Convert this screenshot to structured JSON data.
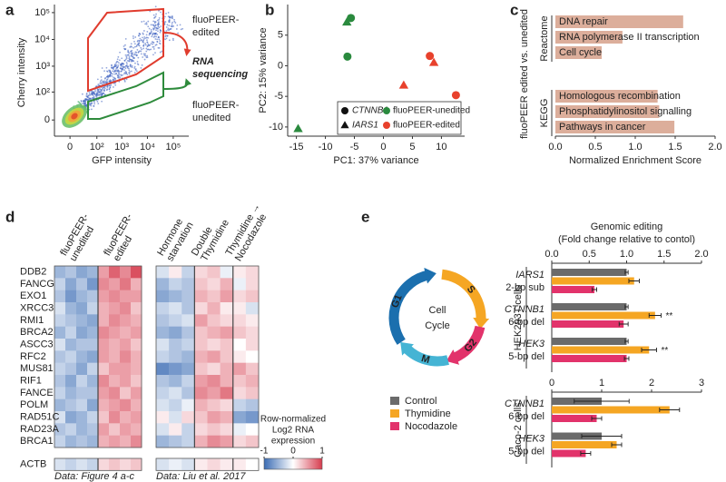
{
  "panel_labels": [
    "a",
    "b",
    "c",
    "d",
    "e"
  ],
  "flow_plot": {
    "xlabel": "GFP intensity",
    "ylabel": "Cherry intensity",
    "xscale": "symlog",
    "yscale": "symlog",
    "xlim": [
      -30,
      400000
    ],
    "ylim": [
      -30,
      200000
    ],
    "xticks": [
      0,
      {
        "value": 100,
        "label": "10²"
      },
      {
        "value": 1000,
        "label": "10³"
      },
      {
        "value": 10000,
        "label": "10⁴"
      },
      {
        "value": 100000,
        "label": "10⁵"
      }
    ],
    "yticks": [
      0,
      {
        "value": 100,
        "label": "10²"
      },
      {
        "value": 1000,
        "label": "10³"
      },
      {
        "value": 10000,
        "label": "10⁴"
      },
      {
        "value": 100000,
        "label": "10⁵"
      }
    ],
    "gates": [
      {
        "lines": [
          "fluoPEER-",
          "edited"
        ],
        "color": "#e03c2e"
      },
      {
        "lines": [
          "fluoPEER-",
          "unedited"
        ],
        "color": "#2e8b3c"
      }
    ],
    "annotation": [
      "RNA",
      "sequencing"
    ]
  },
  "cell_cycle": {
    "title": [
      "Cell",
      "Cycle"
    ],
    "phases": [
      "G1",
      "S",
      "G2",
      "M"
    ]
  },
  "chart_data": [
    {
      "type": "scatter",
      "xlabel": "PC1: 37% variance",
      "ylabel": "PC2: 15% variance",
      "xlim": [
        -16.5,
        14
      ],
      "ylim": [
        -11.5,
        10
      ],
      "xticks": [
        -15,
        -10,
        -5,
        0,
        5,
        10
      ],
      "yticks": [
        -10,
        -5,
        0,
        5
      ],
      "marker_legend": [
        {
          "name": "CTNNB1",
          "marker": "circle"
        },
        {
          "name": "IARS1",
          "marker": "triangle"
        }
      ],
      "series": [
        {
          "name": "fluoPEER-unedited",
          "color": "#2a8a3e",
          "x": [
            -5.6,
            -6.3,
            -6.2,
            -14.7
          ],
          "y": [
            7.8,
            7.1,
            1.5,
            -10.3
          ],
          "markers": [
            "circle",
            "triangle",
            "circle",
            "triangle"
          ]
        },
        {
          "name": "fluoPEER-edited",
          "color": "#e8412c",
          "x": [
            8,
            8.7,
            3.5,
            12.5
          ],
          "y": [
            1.6,
            0.5,
            -3.2,
            -4.8
          ],
          "markers": [
            "circle",
            "triangle",
            "triangle",
            "circle"
          ]
        }
      ]
    },
    {
      "type": "hbar",
      "xlabel": "Normalized Enrichment Score",
      "ylabel": "fluoPEER edited vs. unedited",
      "color": "#dcae9b",
      "xlim": [
        0,
        2
      ],
      "xticks": [
        {
          "value": 0,
          "label": "0.0"
        },
        0.5,
        {
          "value": 1,
          "label": "1.0"
        },
        1.5,
        {
          "value": 2,
          "label": "2.0"
        }
      ],
      "groups": [
        {
          "name": "Reactome",
          "categories": [
            "DNA repair",
            "RNA polymerase II transcription",
            "Cell cycle"
          ],
          "values": [
            1.6,
            0.84,
            0.58
          ]
        },
        {
          "name": "KEGG",
          "categories": [
            "Homologous recombination",
            "Phosphatidylinositol signalling",
            "Pathways in cancer"
          ],
          "values": [
            1.28,
            1.3,
            1.49
          ]
        }
      ]
    },
    {
      "type": "heatmap",
      "rows": [
        "DDB2",
        "FANCG",
        "EXO1",
        "XRCC3",
        "RMI1",
        "BRCA2",
        "ASCC3",
        "RFC2",
        "MUS81",
        "RIF1",
        "FANCE",
        "POLM",
        "RAD51C",
        "RAD23A",
        "BRCA1"
      ],
      "column_headers": [
        [
          "fluoPEER-",
          "unedited"
        ],
        [
          "fluoPEER-",
          "edited"
        ]
      ],
      "zlim": [
        -1,
        1
      ],
      "colors": [
        "#3b6cb4",
        "#ffffff",
        "#d63c4e"
      ],
      "values": [
        [
          -0.5,
          -0.4,
          -0.6,
          -0.5,
          0.5,
          0.8,
          0.6,
          0.9
        ],
        [
          -0.3,
          -0.6,
          -0.4,
          -0.7,
          0.6,
          0.5,
          0.7,
          0.4
        ],
        [
          -0.4,
          -0.7,
          -0.5,
          -0.4,
          0.5,
          0.6,
          0.5,
          0.5
        ],
        [
          -0.2,
          -0.5,
          -0.6,
          -0.3,
          0.4,
          0.5,
          0.6,
          0.3
        ],
        [
          -0.3,
          -0.4,
          -0.5,
          -0.6,
          0.4,
          0.6,
          0.5,
          0.4
        ],
        [
          -0.5,
          -0.3,
          -0.6,
          -0.5,
          0.6,
          0.5,
          0.4,
          0.5
        ],
        [
          -0.2,
          -0.5,
          -0.4,
          -0.4,
          0.5,
          0.4,
          0.5,
          0.3
        ],
        [
          -0.4,
          -0.3,
          -0.5,
          -0.6,
          0.5,
          0.4,
          0.6,
          0.4
        ],
        [
          -0.3,
          -0.4,
          -0.6,
          -0.3,
          0.3,
          0.5,
          0.5,
          0.4
        ],
        [
          -0.4,
          -0.6,
          -0.3,
          -0.5,
          0.6,
          0.4,
          0.5,
          0.3
        ],
        [
          -0.3,
          -0.5,
          -0.4,
          -0.4,
          0.5,
          0.6,
          0.3,
          0.5
        ],
        [
          -0.5,
          -0.4,
          -0.3,
          -0.6,
          0.4,
          0.5,
          0.6,
          0.4
        ],
        [
          -0.2,
          -0.6,
          -0.5,
          -0.3,
          0.3,
          0.6,
          0.4,
          0.5
        ],
        [
          -0.4,
          -0.3,
          -0.5,
          -0.4,
          0.5,
          0.3,
          0.5,
          0.4
        ],
        [
          -0.3,
          -0.5,
          -0.4,
          -0.5,
          0.4,
          0.5,
          0.4,
          0.6
        ]
      ],
      "control_row": {
        "name": "ACTB",
        "values": [
          -0.2,
          -0.3,
          -0.2,
          -0.3,
          0.2,
          0.3,
          0.2,
          0.3
        ]
      },
      "caption": "Data: Figure 4 a-c"
    },
    {
      "type": "heatmap",
      "column_headers": [
        [
          "Hormone",
          "starvation"
        ],
        [
          "Double",
          "Thymidine"
        ],
        [
          "Thymidine →",
          "Nocodazole"
        ]
      ],
      "zlim": [
        -1,
        1
      ],
      "zticks": [
        -1,
        0,
        1
      ],
      "colors": [
        "#3b6cb4",
        "#ffffff",
        "#d63c4e"
      ],
      "colorbar_label": [
        "Row-normalized",
        "Log2 RNA",
        "expression"
      ],
      "values": [
        [
          -0.2,
          0.1,
          -0.3,
          0.2,
          0.3,
          -0.1,
          0.1,
          0.2
        ],
        [
          -0.5,
          -0.3,
          -0.4,
          0.3,
          0.2,
          0.4,
          -0.1,
          0.2
        ],
        [
          -0.6,
          -0.5,
          -0.4,
          0.4,
          0.3,
          0.5,
          0.2,
          0.3
        ],
        [
          -0.3,
          -0.2,
          -0.4,
          0.2,
          0.4,
          0.1,
          0.1,
          -0.2
        ],
        [
          -0.4,
          -0.3,
          -0.2,
          0.5,
          0.3,
          0.2,
          0.2,
          0.1
        ],
        [
          -0.5,
          -0.6,
          -0.4,
          0.3,
          0.4,
          0.5,
          0.3,
          0.2
        ],
        [
          -0.2,
          -0.4,
          -0.3,
          0.3,
          0.2,
          0.3,
          0,
          0.2
        ],
        [
          -0.3,
          -0.4,
          -0.5,
          0.4,
          0.5,
          0.3,
          0.1,
          0
        ],
        [
          -0.8,
          -0.7,
          -0.6,
          0.3,
          0.2,
          0.4,
          0.5,
          0.3
        ],
        [
          -0.4,
          -0.5,
          -0.3,
          0.5,
          0.6,
          0.4,
          0.3,
          0.4
        ],
        [
          -0.3,
          -0.2,
          -0.4,
          0.6,
          0.5,
          0.7,
          0.2,
          0.3
        ],
        [
          -0.2,
          -0.3,
          -0.1,
          0.4,
          0.3,
          0.2,
          -0.3,
          -0.4
        ],
        [
          0.1,
          -0.2,
          0.2,
          0.3,
          0.5,
          0.4,
          -0.6,
          -0.7
        ],
        [
          -0.2,
          0.1,
          -0.3,
          0.2,
          0.3,
          0.2,
          -0.1,
          0
        ],
        [
          -0.5,
          -0.4,
          -0.3,
          0.4,
          0.6,
          0.5,
          0.2,
          0.3
        ]
      ],
      "control_row": {
        "values": [
          -0.2,
          -0.1,
          -0.2,
          0.1,
          0.2,
          0.1,
          0.1,
          0
        ]
      },
      "caption": "Data: Liu et al. 2017"
    },
    {
      "type": "hbar-error",
      "title": "Genomic editing",
      "subtitle": "(Fold change relative to contol)",
      "group_label": "HEK293T cells",
      "categories": [
        "IARS1",
        "CTNNB1",
        "HEK3"
      ],
      "category_sublabels": [
        "2-bp sub",
        "6-bp del",
        "5-bp del"
      ],
      "xlim": [
        0,
        2
      ],
      "xticks": [
        {
          "value": 0,
          "label": "0.0"
        },
        0.5,
        {
          "value": 1,
          "label": "1.0"
        },
        1.5,
        {
          "value": 2,
          "label": "2.0"
        }
      ],
      "series": [
        {
          "name": "Control",
          "color": "#6b6b6b",
          "values": [
            1,
            1,
            1
          ],
          "errors": [
            0.02,
            0.02,
            0.02
          ]
        },
        {
          "name": "Thymidine",
          "color": "#f5a623",
          "values": [
            1.1,
            1.38,
            1.3
          ],
          "errors": [
            0.07,
            0.08,
            0.1
          ],
          "significance": [
            null,
            "**",
            "**"
          ]
        },
        {
          "name": "Nocodazole",
          "color": "#e2336b",
          "values": [
            0.57,
            0.96,
            1.0
          ],
          "errors": [
            0.03,
            0.06,
            0.03
          ]
        }
      ]
    },
    {
      "type": "hbar-error",
      "group_label": "Caco-2 cells",
      "categories": [
        "CTNNB1",
        "HEK3"
      ],
      "category_sublabels": [
        "6-bp del",
        "5-bp del"
      ],
      "xlim": [
        0,
        3
      ],
      "xticks": [
        0,
        1,
        2,
        3
      ],
      "series": [
        {
          "color": "#6b6b6b",
          "values": [
            1,
            1
          ],
          "errors": [
            0.55,
            0.4
          ]
        },
        {
          "color": "#f5a623",
          "values": [
            2.36,
            1.3
          ],
          "errors": [
            0.2,
            0.1
          ]
        },
        {
          "color": "#e2336b",
          "values": [
            0.9,
            0.68
          ],
          "errors": [
            0.1,
            0.1
          ]
        }
      ]
    }
  ]
}
